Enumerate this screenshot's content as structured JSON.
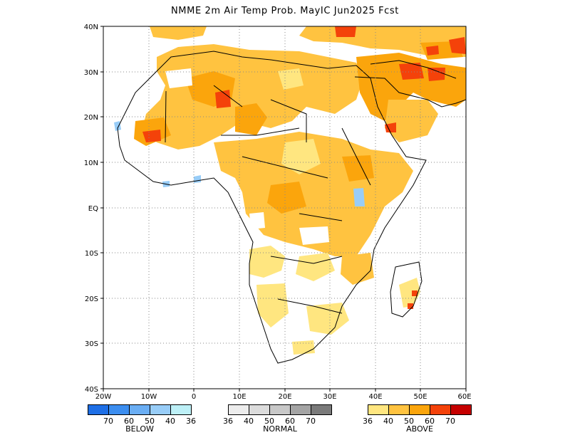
{
  "title": "NMME 2m Air Temp Prob. MayIC  Jun2025 Fcst",
  "axes": {
    "lat_labels": [
      "40N",
      "30N",
      "20N",
      "10N",
      "EQ",
      "10S",
      "20S",
      "30S",
      "40S"
    ],
    "lon_labels": [
      "20W",
      "10W",
      "0",
      "10E",
      "20E",
      "30E",
      "40E",
      "50E",
      "60E"
    ],
    "lat_range": [
      -40,
      40
    ],
    "lon_range": [
      -20,
      60
    ],
    "grid": "dotted"
  },
  "legend": {
    "below": {
      "label": "BELOW",
      "colors": [
        "#1e6fe6",
        "#3c8ef0",
        "#6aaef4",
        "#98cdf8",
        "#bdf0f7"
      ],
      "ticks": [
        "70",
        "60",
        "50",
        "40",
        "36"
      ]
    },
    "normal": {
      "label": "NORMAL",
      "colors": [
        "#ececec",
        "#dcdcdc",
        "#c8c8c8",
        "#a4a4a4",
        "#7a7a7a"
      ],
      "ticks": [
        "36",
        "40",
        "50",
        "60",
        "70"
      ]
    },
    "above": {
      "label": "ABOVE",
      "colors": [
        "#ffe680",
        "#ffc340",
        "#fba50c",
        "#f4420a",
        "#c60000"
      ],
      "ticks": [
        "36",
        "40",
        "50",
        "60",
        "70"
      ]
    }
  }
}
